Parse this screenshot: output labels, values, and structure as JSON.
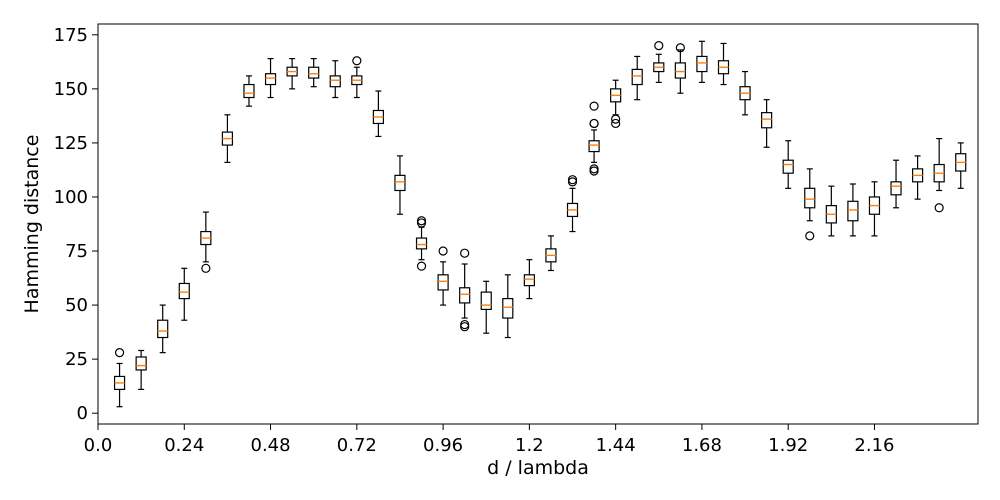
{
  "chart_data": {
    "type": "box",
    "xlabel": "d / lambda",
    "ylabel": "Hamming distance",
    "xlim": [
      0.0,
      2.448
    ],
    "ylim": [
      -5,
      180
    ],
    "xticks": [
      0.0,
      0.24,
      0.48,
      0.72,
      0.96,
      1.2,
      1.44,
      1.68,
      1.92,
      2.16
    ],
    "xtick_labels": [
      "0.0",
      "0.24",
      "0.48",
      "0.72",
      "0.96",
      "1.2",
      "1.44",
      "1.68",
      "1.92",
      "2.16"
    ],
    "yticks": [
      0,
      25,
      50,
      75,
      100,
      125,
      150,
      175
    ],
    "ytick_labels": [
      "0",
      "25",
      "50",
      "75",
      "100",
      "125",
      "150",
      "175"
    ],
    "grid": false,
    "colors": {
      "median": "#ff7f0e",
      "box": "#000000"
    },
    "boxes": [
      {
        "x": 0.06,
        "whislo": 3,
        "q1": 11,
        "med": 14,
        "q3": 17,
        "whishi": 23,
        "fliers": [
          28
        ]
      },
      {
        "x": 0.12,
        "whislo": 11,
        "q1": 20,
        "med": 22,
        "q3": 26,
        "whishi": 29,
        "fliers": []
      },
      {
        "x": 0.18,
        "whislo": 28,
        "q1": 35,
        "med": 38,
        "q3": 43,
        "whishi": 50,
        "fliers": []
      },
      {
        "x": 0.24,
        "whislo": 43,
        "q1": 53,
        "med": 56,
        "q3": 60,
        "whishi": 67,
        "fliers": []
      },
      {
        "x": 0.3,
        "whislo": 70,
        "q1": 78,
        "med": 81,
        "q3": 84,
        "whishi": 93,
        "fliers": [
          67
        ]
      },
      {
        "x": 0.36,
        "whislo": 116,
        "q1": 124,
        "med": 127,
        "q3": 130,
        "whishi": 138,
        "fliers": []
      },
      {
        "x": 0.42,
        "whislo": 142,
        "q1": 146,
        "med": 148,
        "q3": 152,
        "whishi": 156,
        "fliers": []
      },
      {
        "x": 0.48,
        "whislo": 146,
        "q1": 152,
        "med": 155,
        "q3": 157,
        "whishi": 164,
        "fliers": []
      },
      {
        "x": 0.54,
        "whislo": 150,
        "q1": 156,
        "med": 158,
        "q3": 160,
        "whishi": 164,
        "fliers": []
      },
      {
        "x": 0.6,
        "whislo": 151,
        "q1": 155,
        "med": 157,
        "q3": 160,
        "whishi": 164,
        "fliers": []
      },
      {
        "x": 0.66,
        "whislo": 146,
        "q1": 151,
        "med": 154,
        "q3": 156,
        "whishi": 163,
        "fliers": []
      },
      {
        "x": 0.72,
        "whislo": 146,
        "q1": 152,
        "med": 154,
        "q3": 156,
        "whishi": 160,
        "fliers": [
          163
        ]
      },
      {
        "x": 0.78,
        "whislo": 128,
        "q1": 134,
        "med": 137,
        "q3": 140,
        "whishi": 149,
        "fliers": []
      },
      {
        "x": 0.84,
        "whislo": 92,
        "q1": 103,
        "med": 107,
        "q3": 110,
        "whishi": 119,
        "fliers": []
      },
      {
        "x": 0.9,
        "whislo": 71,
        "q1": 76,
        "med": 78,
        "q3": 81,
        "whishi": 86,
        "fliers": [
          68,
          88,
          89
        ]
      },
      {
        "x": 0.96,
        "whislo": 50,
        "q1": 57,
        "med": 61,
        "q3": 64,
        "whishi": 70,
        "fliers": [
          75
        ]
      },
      {
        "x": 1.02,
        "whislo": 44,
        "q1": 51,
        "med": 55,
        "q3": 58,
        "whishi": 69,
        "fliers": [
          40,
          41,
          74
        ]
      },
      {
        "x": 1.08,
        "whislo": 37,
        "q1": 48,
        "med": 50,
        "q3": 56,
        "whishi": 61,
        "fliers": []
      },
      {
        "x": 1.14,
        "whislo": 35,
        "q1": 44,
        "med": 49,
        "q3": 53,
        "whishi": 64,
        "fliers": []
      },
      {
        "x": 1.2,
        "whislo": 53,
        "q1": 59,
        "med": 62,
        "q3": 64,
        "whishi": 71,
        "fliers": []
      },
      {
        "x": 1.26,
        "whislo": 66,
        "q1": 70,
        "med": 73,
        "q3": 76,
        "whishi": 82,
        "fliers": []
      },
      {
        "x": 1.32,
        "whislo": 84,
        "q1": 91,
        "med": 94,
        "q3": 97,
        "whishi": 104,
        "fliers": [
          107,
          108
        ]
      },
      {
        "x": 1.38,
        "whislo": 116,
        "q1": 121,
        "med": 124,
        "q3": 126,
        "whishi": 131,
        "fliers": [
          112,
          113,
          134,
          134,
          142
        ]
      },
      {
        "x": 1.44,
        "whislo": 138,
        "q1": 144,
        "med": 147,
        "q3": 150,
        "whishi": 154,
        "fliers": [
          134,
          136
        ]
      },
      {
        "x": 1.5,
        "whislo": 145,
        "q1": 152,
        "med": 156,
        "q3": 159,
        "whishi": 165,
        "fliers": []
      },
      {
        "x": 1.56,
        "whislo": 153,
        "q1": 158,
        "med": 160,
        "q3": 162,
        "whishi": 166,
        "fliers": [
          170
        ]
      },
      {
        "x": 1.62,
        "whislo": 148,
        "q1": 155,
        "med": 158,
        "q3": 162,
        "whishi": 168,
        "fliers": [
          169
        ]
      },
      {
        "x": 1.68,
        "whislo": 153,
        "q1": 158,
        "med": 162,
        "q3": 165,
        "whishi": 172,
        "fliers": []
      },
      {
        "x": 1.74,
        "whislo": 152,
        "q1": 157,
        "med": 160,
        "q3": 163,
        "whishi": 171,
        "fliers": []
      },
      {
        "x": 1.8,
        "whislo": 138,
        "q1": 145,
        "med": 148,
        "q3": 151,
        "whishi": 158,
        "fliers": []
      },
      {
        "x": 1.86,
        "whislo": 123,
        "q1": 132,
        "med": 136,
        "q3": 139,
        "whishi": 145,
        "fliers": []
      },
      {
        "x": 1.92,
        "whislo": 104,
        "q1": 111,
        "med": 115,
        "q3": 117,
        "whishi": 126,
        "fliers": []
      },
      {
        "x": 1.98,
        "whislo": 89,
        "q1": 95,
        "med": 99,
        "q3": 104,
        "whishi": 113,
        "fliers": [
          82
        ]
      },
      {
        "x": 2.04,
        "whislo": 82,
        "q1": 88,
        "med": 92,
        "q3": 96,
        "whishi": 105,
        "fliers": []
      },
      {
        "x": 2.1,
        "whislo": 82,
        "q1": 89,
        "med": 94,
        "q3": 98,
        "whishi": 106,
        "fliers": []
      },
      {
        "x": 2.16,
        "whislo": 82,
        "q1": 92,
        "med": 96,
        "q3": 100,
        "whishi": 107,
        "fliers": []
      },
      {
        "x": 2.22,
        "whislo": 95,
        "q1": 101,
        "med": 105,
        "q3": 107,
        "whishi": 117,
        "fliers": []
      },
      {
        "x": 2.28,
        "whislo": 99,
        "q1": 107,
        "med": 110,
        "q3": 113,
        "whishi": 119,
        "fliers": []
      },
      {
        "x": 2.34,
        "whislo": 103,
        "q1": 107,
        "med": 111,
        "q3": 115,
        "whishi": 127,
        "fliers": [
          95
        ]
      },
      {
        "x": 2.4,
        "whislo": 104,
        "q1": 112,
        "med": 116,
        "q3": 120,
        "whishi": 125,
        "fliers": []
      }
    ]
  }
}
